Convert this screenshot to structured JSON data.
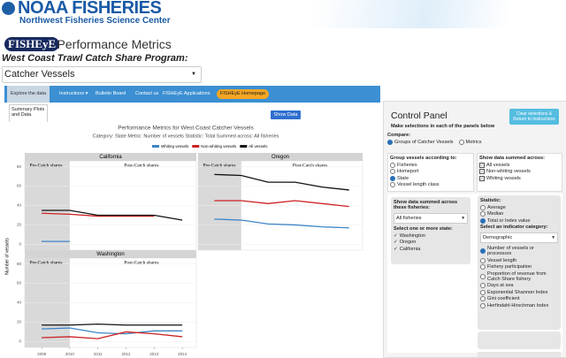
{
  "header": {
    "logo": "NOAA FISHERIES",
    "center": "Northwest Fisheries Science Center"
  },
  "app": {
    "badge": "FISHEyE",
    "title": "- Performance Metrics",
    "program": "West Coast Trawl Catch Share Program:",
    "vessel_select": "Catcher Vessels"
  },
  "nav": {
    "tabs": [
      "Explore the data",
      "Instructions",
      "Bulletin Board",
      "Contact us",
      "FISHEyE Applications",
      "FISHEyE Homepage"
    ]
  },
  "subtab": "Summary Plots and Data",
  "show_data": "Show Data",
  "figure": {
    "title": "Performance Metrics for West Coast Catcher Vessels",
    "subtitle": "Category: State   Metric: Number of vessels   Statistic: Total   Summed across: All fisheries",
    "y_label": "Number of vessels"
  },
  "chart_data": [
    {
      "type": "line",
      "title": "California",
      "annotations": [
        "Pre-Catch shares",
        "Post-Catch shares"
      ],
      "x": [
        2009,
        2010,
        2011,
        2012,
        2013,
        2014
      ],
      "xlim": [
        2008.4,
        2014.5
      ],
      "ylim": [
        -6,
        86
      ],
      "yticks": [
        0,
        20,
        40,
        60,
        80
      ],
      "ytick_labels": true,
      "grid": true,
      "series": [
        {
          "name": "Whiting vessels",
          "color": "#3d85c6",
          "values": [
            3,
            3,
            null,
            null,
            null,
            null
          ]
        },
        {
          "name": "Non-whiting vessels",
          "color": "#cc2222",
          "values": [
            32,
            31,
            29,
            29,
            29,
            null
          ]
        },
        {
          "name": "All vessels",
          "color": "#111111",
          "values": [
            35,
            35,
            30,
            30,
            30,
            25
          ]
        }
      ]
    },
    {
      "type": "line",
      "title": "Oregon",
      "annotations": [
        "Pre-Catch shares",
        "Post-Catch shares"
      ],
      "x": [
        2009,
        2010,
        2011,
        2012,
        2013,
        2014
      ],
      "xlim": [
        2008.4,
        2014.5
      ],
      "ylim": [
        -6,
        86
      ],
      "yticks": [
        0,
        20,
        40,
        60,
        80
      ],
      "ytick_labels": false,
      "grid": true,
      "series": [
        {
          "name": "Whiting vessels",
          "color": "#3d85c6",
          "values": [
            26,
            25,
            21,
            20,
            18,
            17
          ]
        },
        {
          "name": "Non-whiting vessels",
          "color": "#cc2222",
          "values": [
            45,
            45,
            42,
            45,
            42,
            39
          ]
        },
        {
          "name": "All vessels",
          "color": "#111111",
          "values": [
            72,
            71,
            64,
            64,
            59,
            56
          ]
        }
      ]
    },
    {
      "type": "line",
      "title": "Washington",
      "annotations": [
        "Pre-Catch shares",
        "Post-Catch shares"
      ],
      "x": [
        2009,
        2010,
        2011,
        2012,
        2013,
        2014
      ],
      "xlim": [
        2008.4,
        2014.5
      ],
      "ylim": [
        -6,
        86
      ],
      "yticks": [
        0,
        20,
        40,
        60,
        80
      ],
      "ytick_labels": true,
      "xticks": [
        2009,
        2010,
        2011,
        2012,
        2013,
        2014
      ],
      "grid": true,
      "series": [
        {
          "name": "Whiting vessels",
          "color": "#3d85c6",
          "values": [
            13,
            14,
            9,
            8,
            11,
            11
          ]
        },
        {
          "name": "Non-whiting vessels",
          "color": "#cc2222",
          "values": [
            4,
            5,
            3,
            10,
            8,
            5
          ]
        },
        {
          "name": "All vessels",
          "color": "#111111",
          "values": [
            17,
            17,
            18,
            17,
            17,
            17
          ]
        }
      ]
    }
  ],
  "control_panel": {
    "title": "Control Panel",
    "button": "Clear selections & Return to Instructions",
    "hint": "Make selections in each of the panels below",
    "compare": {
      "label": "Compare:",
      "options": [
        "Groups of Catcher Vessels",
        "Metrics"
      ],
      "selected": 0
    },
    "group_by": {
      "label": "Group vessels according to:",
      "options": [
        "Fisheries",
        "Homeport",
        "State",
        "Vessel length class"
      ],
      "selected": 2
    },
    "summed": {
      "label": "Show data summed across:",
      "options": [
        "All vessels",
        "Non-whiting vessels",
        "Whiting vessels"
      ]
    },
    "fisheries": {
      "label": "Show data summed across these fisheries:",
      "value": "All fisheries"
    },
    "states": {
      "label": "Select one or more state:",
      "options": [
        "Washington",
        "Oregon",
        "California"
      ]
    },
    "statistic": {
      "label": "Statistic:",
      "options": [
        "Average",
        "Median",
        "Total or Index value"
      ],
      "selected": 2
    },
    "indicator": {
      "label": "Select an indicator category:",
      "value": "Demographic",
      "options": [
        "Number of vessels or processors",
        "Vessel length",
        "Fishery participation",
        "Proportion of revenue from Catch Share fishery",
        "Days at sea",
        "Exponential Shannon Index",
        "Gini coefficient",
        "Herfindahl-Hirschman Index"
      ],
      "selected": 0
    }
  }
}
